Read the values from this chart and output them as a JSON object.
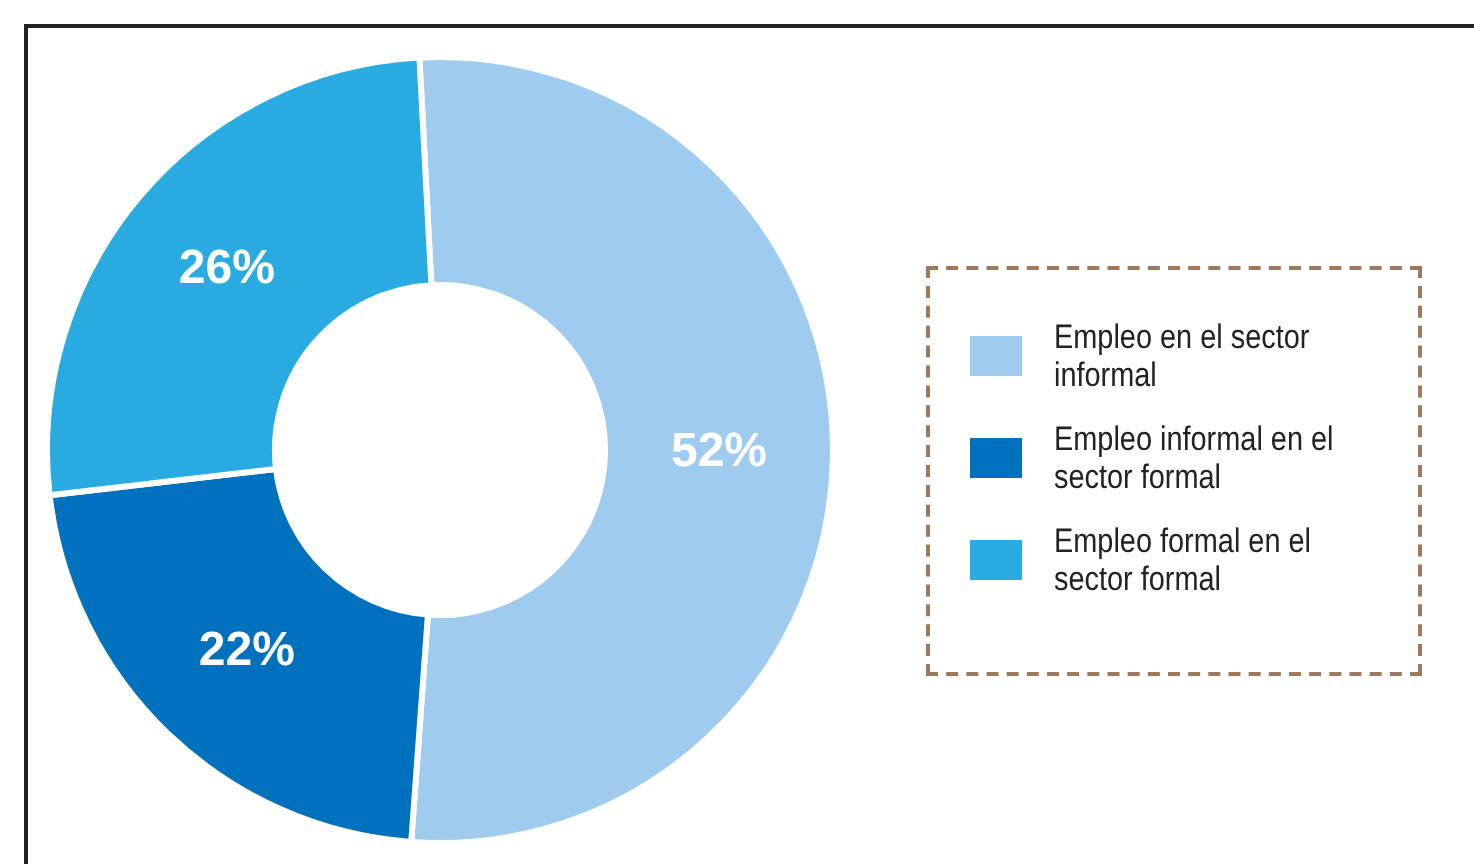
{
  "chart_data": {
    "type": "donut",
    "categories": [
      "Empleo en el sector informal",
      "Empleo informal en el sector formal",
      "Empleo formal en el sector formal"
    ],
    "values": [
      52,
      22,
      26
    ],
    "colors": [
      "#9fcbee",
      "#0071bc",
      "#29abe2"
    ],
    "value_labels": [
      "52%",
      "22%",
      "26%"
    ],
    "legend": "right"
  }
}
